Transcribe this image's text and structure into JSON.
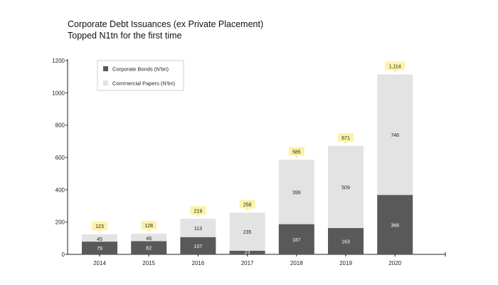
{
  "chart_data": {
    "type": "bar",
    "stacked": true,
    "title": "Corporate Debt Issuances (ex Private Placement)",
    "subtitle": "Topped N1tn for the first time",
    "xlabel": "",
    "ylabel": "",
    "categories": [
      "2014",
      "2015",
      "2016",
      "2017",
      "2018",
      "2019",
      "2020"
    ],
    "series": [
      {
        "name": "Corporate Bonds (N'bn)",
        "color": "#595959",
        "labels": [
          "79",
          "82",
          "107",
          "23",
          "187",
          "163",
          "368"
        ],
        "values": [
          79,
          82,
          107,
          23,
          187,
          163,
          368
        ]
      },
      {
        "name": "Commercial Papers (N'bn)",
        "color": "#e3e3e3",
        "labels": [
          "45",
          "46",
          "113",
          "235",
          "399",
          "509",
          "746"
        ],
        "values": [
          45,
          46,
          113,
          235,
          399,
          509,
          746
        ]
      }
    ],
    "totals": [
      123,
      128,
      219,
      258,
      585,
      671,
      1114
    ],
    "total_labels": [
      "123",
      "128",
      "219",
      "258",
      "585",
      "671",
      "1,114"
    ],
    "ylim": [
      0,
      1200
    ],
    "yticks": [
      0,
      200,
      400,
      600,
      800,
      1000,
      1200
    ],
    "ytick_labels": [
      "0",
      "200",
      "400",
      "600",
      "800",
      "1000",
      "1200"
    ],
    "legend_position": "top-left",
    "callout_color": "#fbf3a6",
    "grid": false
  }
}
